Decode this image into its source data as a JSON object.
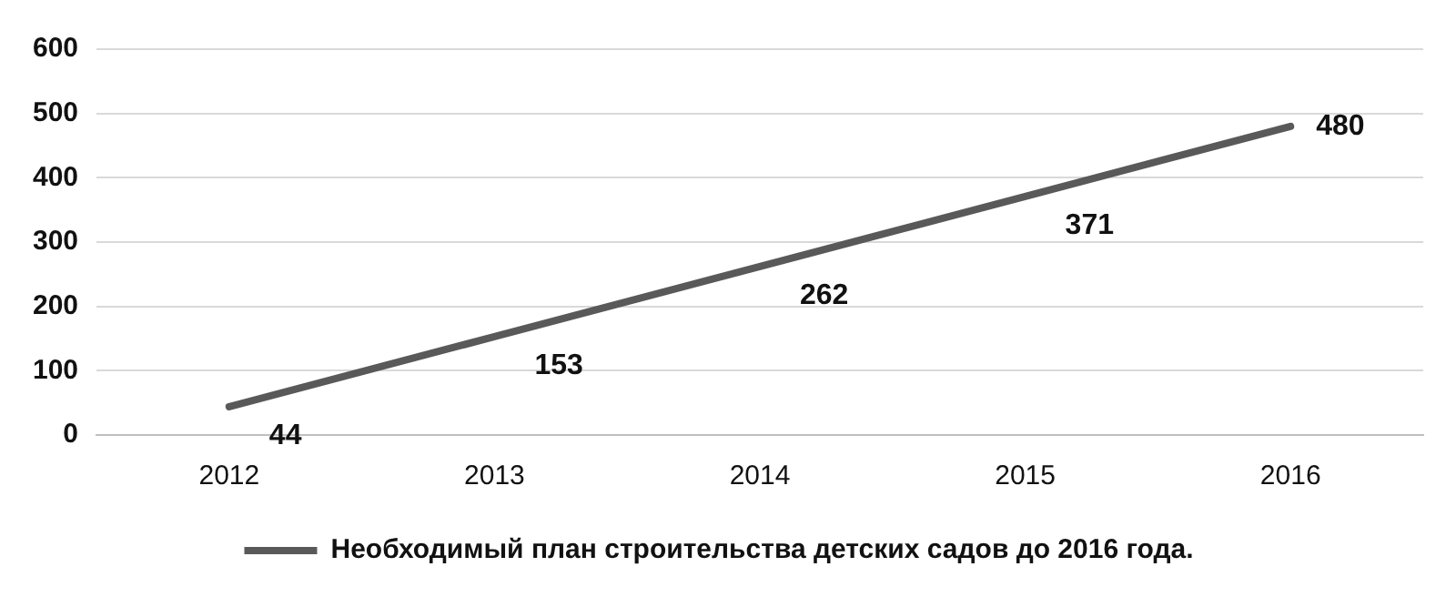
{
  "chart_data": {
    "type": "line",
    "categories": [
      "2012",
      "2013",
      "2014",
      "2015",
      "2016"
    ],
    "series": [
      {
        "name": "Необходимый план строительства детских садов до 2016 года.",
        "color": "#595959",
        "values": [
          44,
          153,
          262,
          371,
          480
        ]
      }
    ],
    "ylim": [
      0,
      600
    ],
    "yticks": [
      0,
      100,
      200,
      300,
      400,
      500,
      600
    ],
    "grid": "y",
    "legend": "bottom",
    "data_labels": true,
    "marker": "none",
    "line_style": "solid"
  }
}
